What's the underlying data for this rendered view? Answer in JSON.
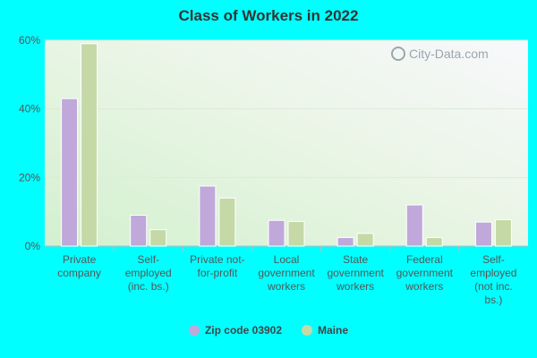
{
  "chart_data": {
    "type": "bar",
    "title": "Class of Workers in 2022",
    "categories": [
      [
        "Private",
        "company"
      ],
      [
        "Self-",
        "employed",
        "(inc. bs.)"
      ],
      [
        "Private not-",
        "for-profit"
      ],
      [
        "Local",
        "government",
        "workers"
      ],
      [
        "State",
        "government",
        "workers"
      ],
      [
        "Federal",
        "government",
        "workers"
      ],
      [
        "Self-",
        "employed",
        "(not inc.",
        "bs.)"
      ]
    ],
    "series": [
      {
        "name": "Zip code 03902",
        "color": "#c0a8da",
        "values": [
          43,
          9,
          17.5,
          7.5,
          2.5,
          12,
          7
        ]
      },
      {
        "name": "Maine",
        "color": "#c5d9a7",
        "values": [
          59,
          4.8,
          14,
          7.2,
          3.7,
          2.5,
          7.7
        ]
      }
    ],
    "ylim": [
      0,
      60
    ],
    "yticks": [
      0,
      20,
      40,
      60
    ],
    "ytick_labels": [
      "0%",
      "20%",
      "40%",
      "60%"
    ],
    "grid": true,
    "legend": "bottom-center"
  },
  "watermark": "City-Data.com"
}
